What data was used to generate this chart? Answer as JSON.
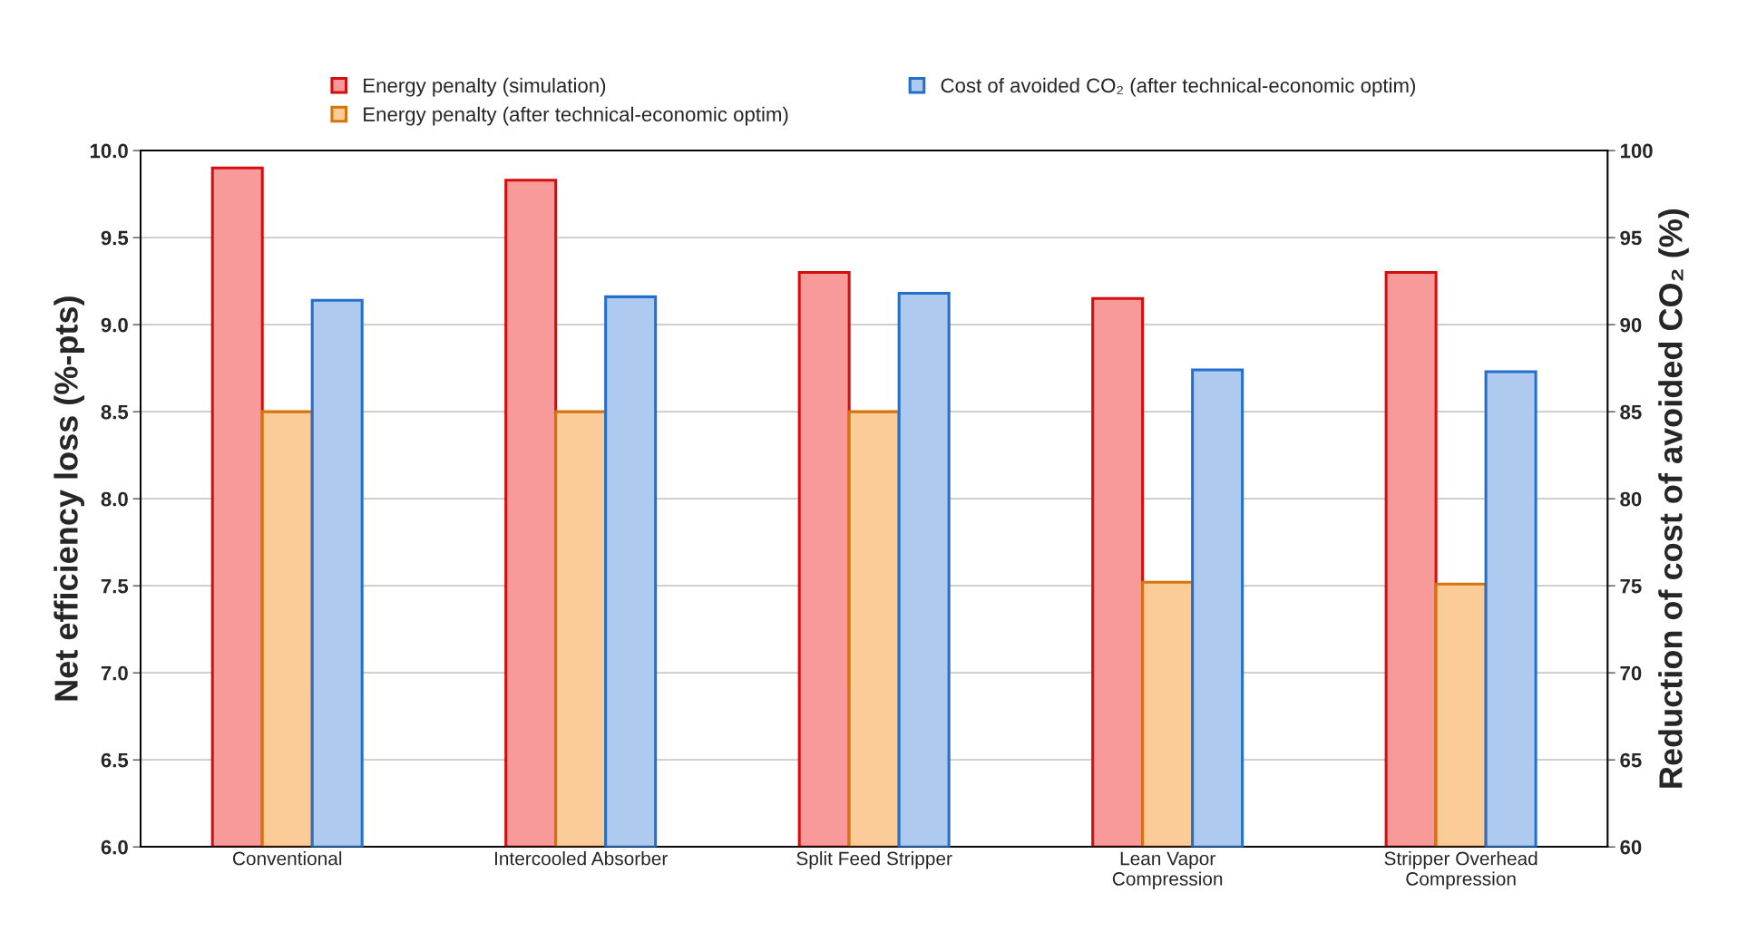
{
  "chart_data": {
    "type": "bar",
    "categories": [
      "Conventional",
      "Intercooled Absorber",
      "Split Feed Stripper",
      "Lean Vapor\nCompression",
      "Stripper Overhead\nCompression"
    ],
    "series": [
      {
        "name": "Energy penalty (simulation)",
        "color": "#f99a9a",
        "values": [
          9.9,
          9.83,
          9.3,
          9.15,
          9.3
        ]
      },
      {
        "name": "Energy penalty (after technical-economic optim)",
        "color": "#fbcb98",
        "values": [
          8.5,
          8.5,
          8.5,
          7.52,
          7.51
        ]
      },
      {
        "name": "Cost of avoided CO₂ (after technical-economic optim)",
        "color": "#aecbef",
        "values": [
          91.4,
          91.6,
          91.8,
          87.4,
          87.3
        ],
        "axis": "y2"
      }
    ],
    "ylabel": "Net efficiency loss (%-pts)",
    "y2label": "Reduction of cost of avoided CO₂ (%)",
    "ylim": [
      6,
      10
    ],
    "yticks": [
      {
        "value": 6,
        "label": "6.0"
      },
      {
        "value": 6.5,
        "label": "6.5"
      },
      {
        "value": 7,
        "label": "7.0"
      },
      {
        "value": 7.5,
        "label": "7.5"
      },
      {
        "value": 8,
        "label": "8.0"
      },
      {
        "value": 8.5,
        "label": "8.5"
      },
      {
        "value": 9,
        "label": "9.0"
      },
      {
        "value": 9.5,
        "label": "9.5"
      },
      {
        "value": 10,
        "label": "10.0"
      }
    ],
    "y2lim": [
      60,
      100
    ],
    "y2ticks": [
      60,
      65,
      70,
      75,
      80,
      85,
      90,
      95,
      100
    ],
    "grid": "y",
    "legend": "top"
  }
}
